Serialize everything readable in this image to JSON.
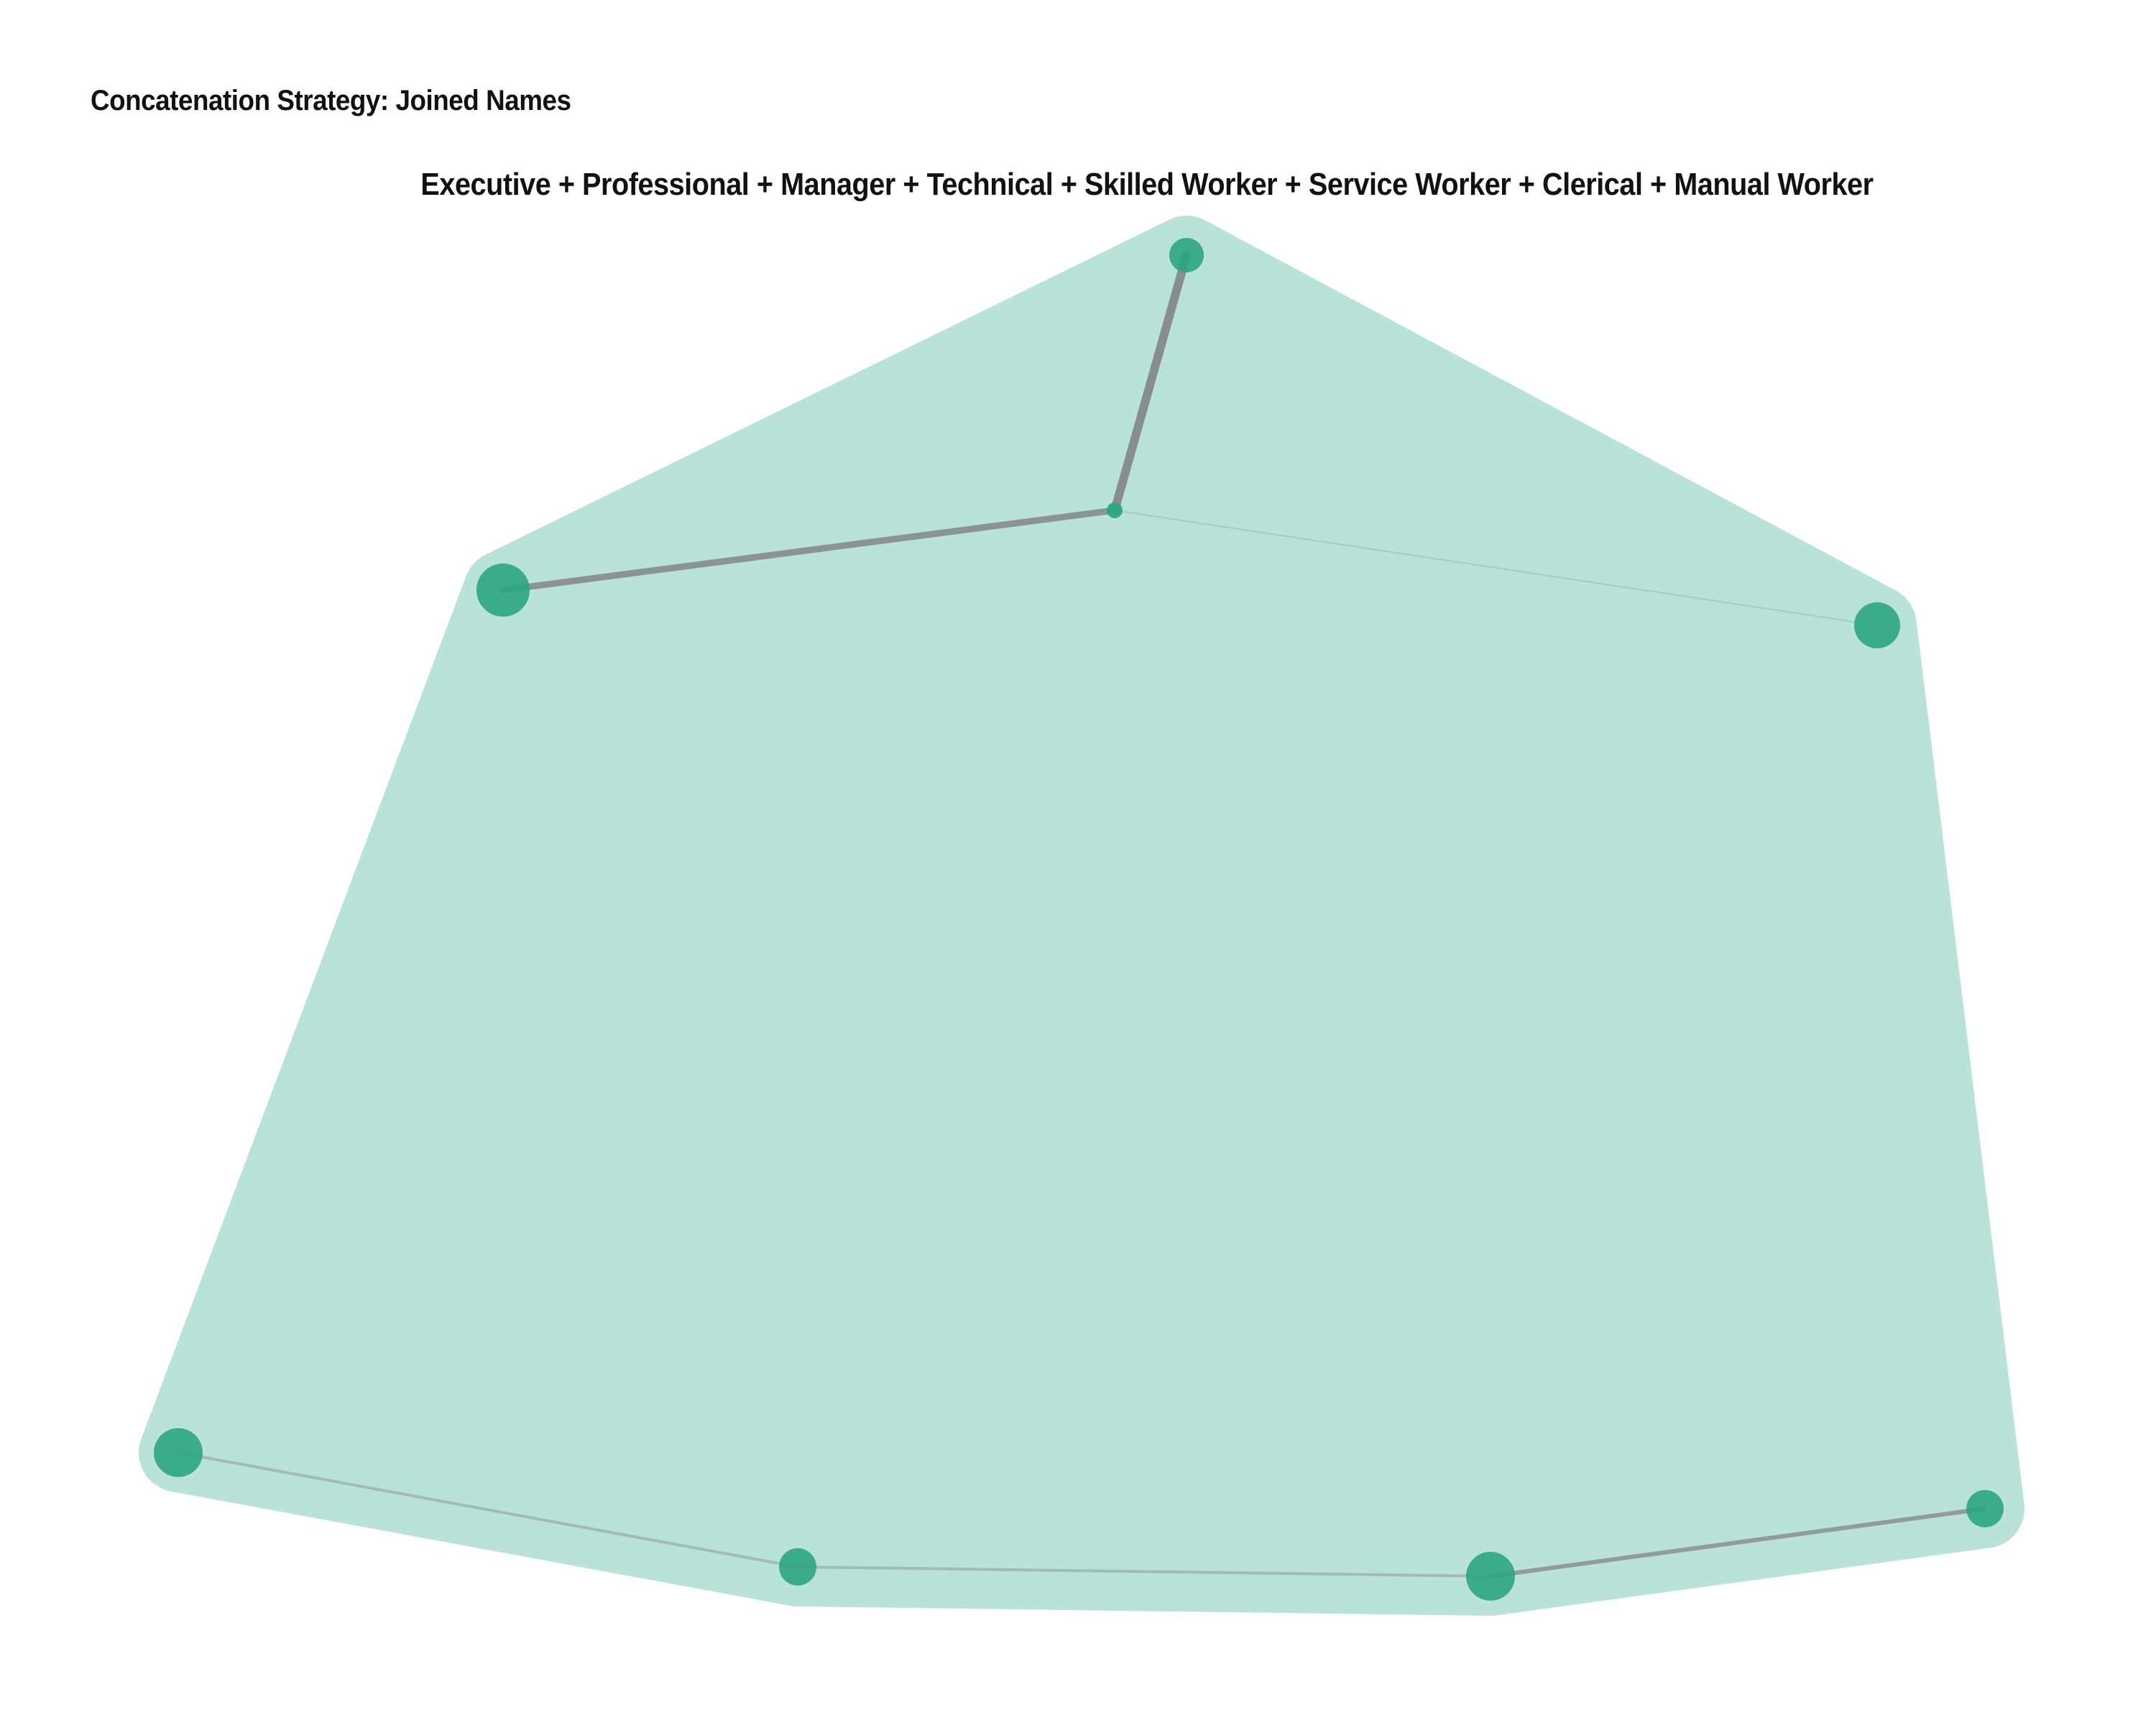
{
  "title": "Concatenation Strategy: Joined Names",
  "group": {
    "label": "Executive + Professional + Manager + Technical + Skilled Worker + Service Worker + Clerical + Manual Worker",
    "hull_color": "#b9e3d8",
    "node_color": "#2ca57f",
    "edge_color": "#7f7f7f"
  }
}
